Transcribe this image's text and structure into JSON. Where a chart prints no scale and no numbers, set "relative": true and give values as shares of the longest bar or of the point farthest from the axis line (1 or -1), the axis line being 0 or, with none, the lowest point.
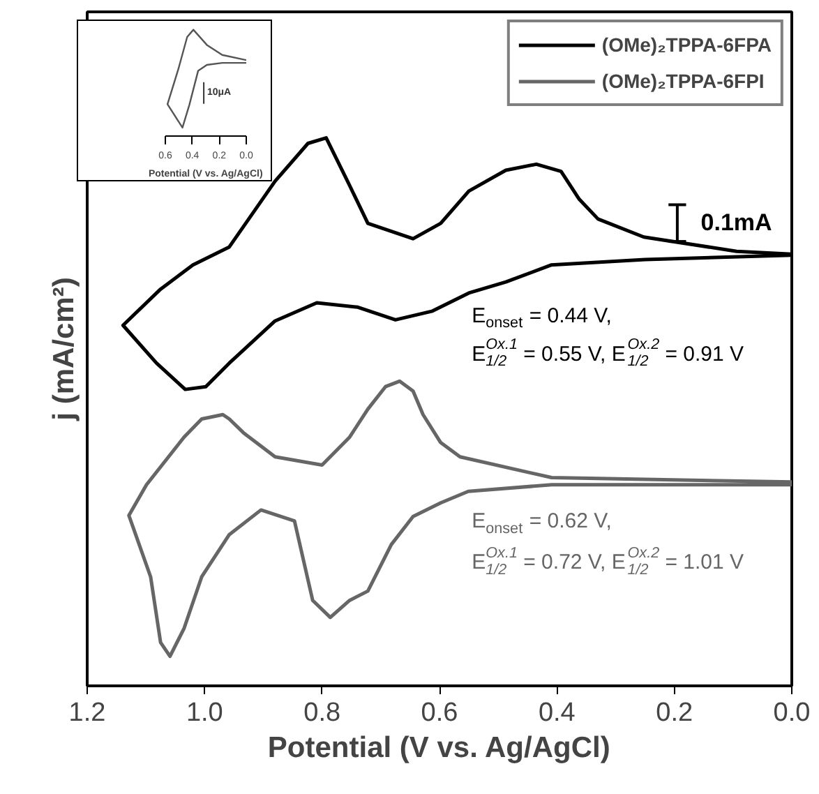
{
  "chart_data": [
    {
      "type": "line",
      "xlabel": "Potential (V vs. Ag/AgCl)",
      "ylabel": "j (mA/cm²)",
      "relative": true,
      "xlim": [
        1.2,
        0.0
      ],
      "xticks": [
        {
          "value": 1.2,
          "label": "1.2"
        },
        {
          "value": 1.0,
          "label": "1.0"
        },
        {
          "value": 0.8,
          "label": "0.8"
        },
        {
          "value": 0.6,
          "label": "0.6"
        },
        {
          "value": 0.4,
          "label": "0.4"
        },
        {
          "value": 0.2,
          "label": "0.2"
        },
        {
          "value": 0.0,
          "label": "0.0"
        }
      ],
      "series": [
        {
          "name": "(OMe)₂TPPA-6FPA",
          "color": "#000000",
          "x": [
            0.0,
            0.094,
            0.252,
            0.33,
            0.362,
            0.393,
            0.435,
            0.487,
            0.55,
            0.598,
            0.645,
            0.722,
            0.753,
            0.793,
            0.824,
            0.88,
            0.958,
            1.02,
            1.075,
            1.139,
            1.082,
            1.033,
            0.998,
            0.958,
            0.88,
            0.809,
            0.739,
            0.675,
            0.612,
            0.55,
            0.487,
            0.41,
            0.25,
            0.0
          ],
          "values": [
            0.788,
            0.793,
            0.819,
            0.852,
            0.888,
            0.939,
            0.952,
            0.941,
            0.903,
            0.844,
            0.816,
            0.844,
            0.913,
            1.0,
            0.99,
            0.921,
            0.801,
            0.768,
            0.724,
            0.658,
            0.589,
            0.541,
            0.546,
            0.589,
            0.666,
            0.699,
            0.691,
            0.668,
            0.684,
            0.717,
            0.737,
            0.768,
            0.778,
            0.786
          ]
        },
        {
          "name": "(OMe)₂TPPA-6FPI",
          "color": "#666666",
          "x": [
            0.0,
            0.409,
            0.565,
            0.598,
            0.628,
            0.645,
            0.668,
            0.692,
            0.722,
            0.753,
            0.8,
            0.88,
            0.934,
            0.958,
            0.969,
            1.005,
            1.035,
            1.099,
            1.129,
            1.092,
            1.075,
            1.059,
            1.035,
            1.005,
            0.958,
            0.904,
            0.847,
            0.816,
            0.786,
            0.753,
            0.722,
            0.682,
            0.645,
            0.598,
            0.551,
            0.409,
            0.0
          ],
          "values": [
            0.372,
            0.38,
            0.418,
            0.444,
            0.495,
            0.538,
            0.556,
            0.546,
            0.505,
            0.454,
            0.403,
            0.418,
            0.462,
            0.487,
            0.495,
            0.487,
            0.454,
            0.367,
            0.311,
            0.199,
            0.079,
            0.054,
            0.105,
            0.199,
            0.276,
            0.321,
            0.301,
            0.156,
            0.125,
            0.156,
            0.173,
            0.258,
            0.309,
            0.334,
            0.355,
            0.367,
            0.367
          ]
        }
      ],
      "annotations": [
        "0.1mA",
        "E$_{onset}$ = 0.44 V,",
        "E$_{1/2}$$^{Ox.1}$ = 0.55 V, E$_{1/2}$$^{Ox.2}$ = 0.91 V",
        "E$_{onset}$ = 0.62 V,",
        "E$_{1/2}$$^{Ox.1}$ = 0.72 V, E$_{1/2}$$^{Ox.2}$ = 1.01 V"
      ],
      "legend": "top right",
      "grid": false,
      "marker": "none",
      "line_style": "solid"
    },
    {
      "type": "line",
      "xlabel": "Potential (V vs. Ag/AgCl)",
      "relative": true,
      "xlim": [
        0.6,
        0.0
      ],
      "xticks": [
        {
          "value": 0.6,
          "label": "0.6"
        },
        {
          "value": 0.4,
          "label": "0.4"
        },
        {
          "value": 0.2,
          "label": "0.2"
        },
        {
          "value": 0.0,
          "label": "0.0"
        }
      ],
      "series": [
        {
          "color": "#555555",
          "x": [
            0.0,
            0.178,
            0.292,
            0.392,
            0.438,
            0.503,
            0.584,
            0.473,
            0.422,
            0.357,
            0.292,
            0.178,
            0.0
          ],
          "values": [
            0.714,
            0.763,
            0.857,
            1.0,
            0.932,
            0.632,
            0.3,
            0.079,
            0.293,
            0.613,
            0.669,
            0.688,
            0.688
          ]
        }
      ],
      "annotations": [
        "10μA"
      ],
      "grid": false,
      "marker": "none",
      "line_style": "solid"
    }
  ]
}
